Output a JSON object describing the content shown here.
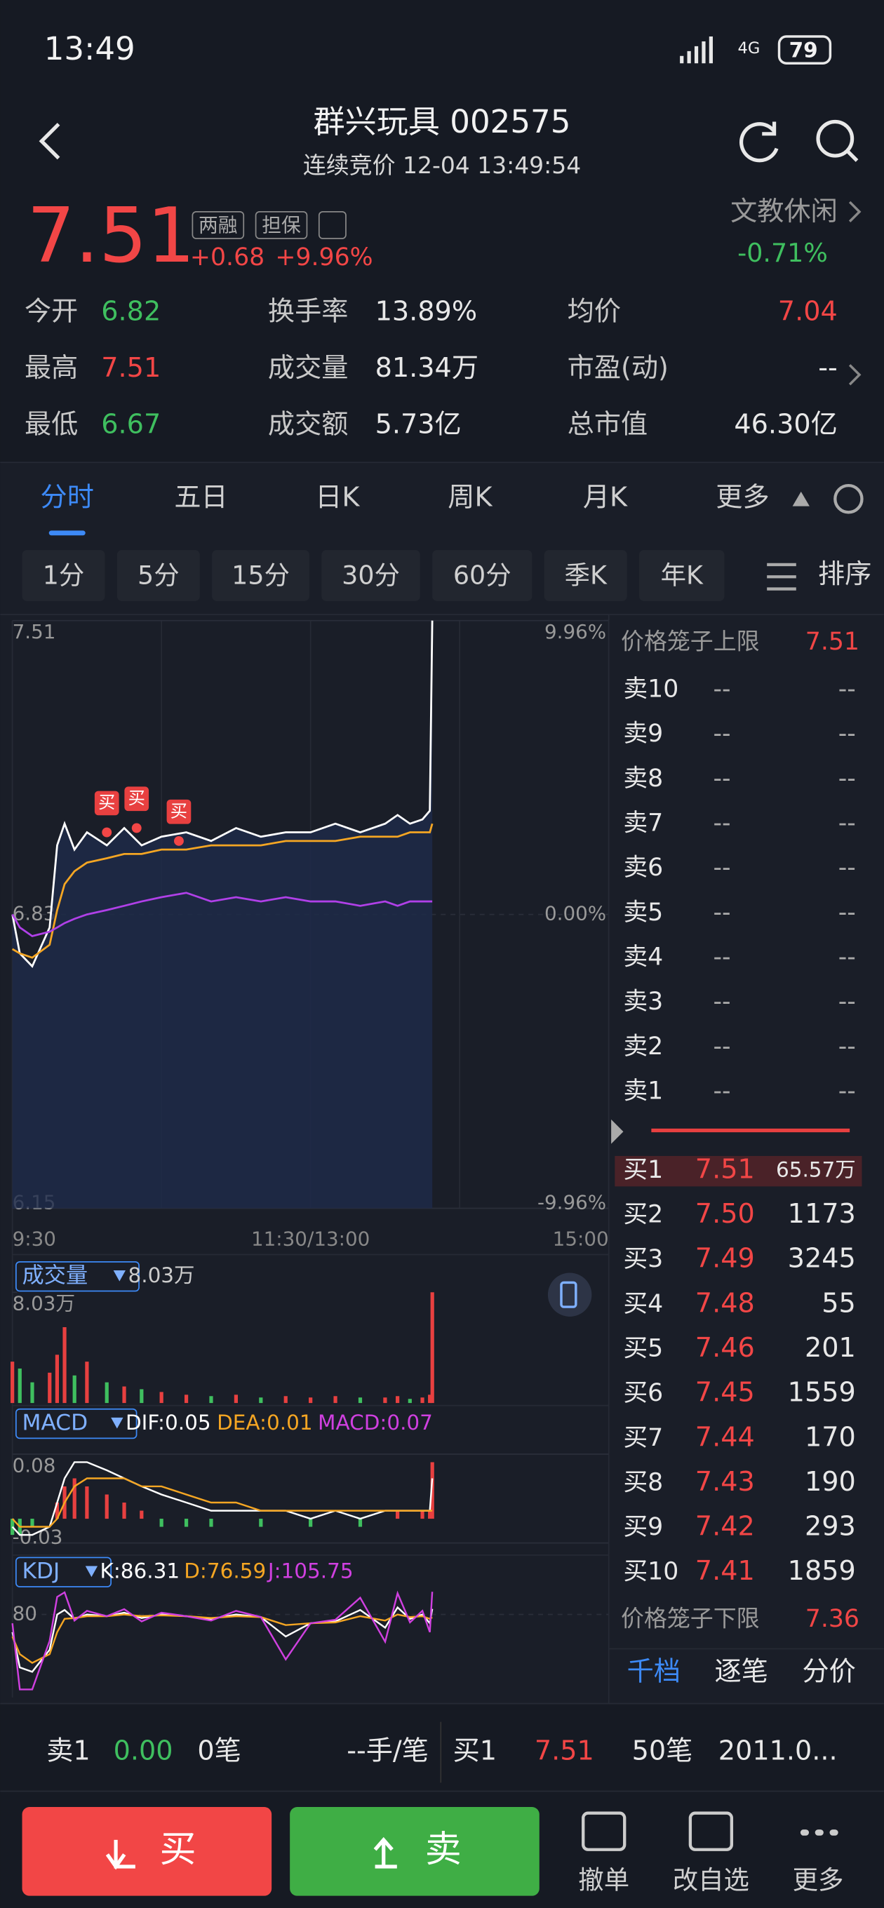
{
  "status_bar": {
    "time": "13:49",
    "network": "4G",
    "battery": "79"
  },
  "header": {
    "title": "群兴玩具 002575",
    "subtitle": "连续竞价 12-04 13:49:54"
  },
  "quote": {
    "price": "7.51",
    "tags": [
      "两融",
      "担保"
    ],
    "change": "+0.68",
    "change_pct": "+9.96%",
    "sector": "文教休闲",
    "sector_change": "-0.71%"
  },
  "stats": [
    [
      {
        "label": "今开",
        "value": "6.82",
        "color": "#3fbf5f"
      },
      {
        "label": "换手率",
        "value": "13.89%",
        "color": "#e8e8e8"
      },
      {
        "label": "均价",
        "value": "7.04",
        "color": "#f24646"
      }
    ],
    [
      {
        "label": "最高",
        "value": "7.51",
        "color": "#f24646"
      },
      {
        "label": "成交量",
        "value": "81.34万",
        "color": "#e8e8e8"
      },
      {
        "label": "市盈(动)",
        "value": "--",
        "color": "#e8e8e8"
      }
    ],
    [
      {
        "label": "最低",
        "value": "6.67",
        "color": "#3fbf5f"
      },
      {
        "label": "成交额",
        "value": "5.73亿",
        "color": "#e8e8e8"
      },
      {
        "label": "总市值",
        "value": "46.30亿",
        "color": "#e8e8e8"
      }
    ]
  ],
  "tabs": [
    "分时",
    "五日",
    "日K",
    "周K",
    "月K",
    "更多"
  ],
  "periods": [
    "1分",
    "5分",
    "15分",
    "30分",
    "60分",
    "季K",
    "年K"
  ],
  "sort": "排序",
  "chart_data": [
    {
      "type": "line",
      "x": [
        0,
        3,
        8,
        15,
        18,
        21,
        25,
        30,
        38,
        45,
        52,
        60,
        70,
        80,
        90,
        100,
        110,
        120,
        130,
        140,
        150,
        155,
        160,
        165,
        168,
        169
      ],
      "xlim": [
        0,
        240
      ],
      "xticks": [
        {
          "value": 0,
          "label": "9:30"
        },
        {
          "value": 120,
          "label": "11:30/13:00"
        },
        {
          "value": 240,
          "label": "15:00"
        }
      ],
      "ylim": [
        6.15,
        7.51
      ],
      "yticks": [
        6.15,
        6.83,
        7.51
      ],
      "y2lim": [
        -9.96,
        9.96
      ],
      "y2ticks": [
        {
          "value": -9.96,
          "label": "-9.96%"
        },
        {
          "value": 0,
          "label": "0.00%"
        },
        {
          "value": 9.96,
          "label": "9.96%"
        }
      ],
      "series": [
        {
          "color": "#ffffff",
          "values": [
            6.83,
            6.74,
            6.71,
            6.8,
            6.99,
            7.04,
            6.98,
            7.02,
            6.99,
            7.03,
            6.99,
            7.01,
            7.02,
            7.0,
            7.03,
            7.01,
            7.02,
            7.02,
            7.04,
            7.02,
            7.04,
            7.06,
            7.04,
            7.05,
            7.07,
            7.51
          ]
        },
        {
          "color": "#f5a623",
          "values": [
            6.75,
            6.74,
            6.73,
            6.76,
            6.84,
            6.9,
            6.93,
            6.95,
            6.96,
            6.97,
            6.97,
            6.98,
            6.98,
            6.99,
            6.99,
            6.99,
            7.0,
            7.0,
            7.0,
            7.01,
            7.01,
            7.01,
            7.02,
            7.02,
            7.02,
            7.04
          ]
        },
        {
          "color": "#b040e8",
          "values": [
            6.83,
            6.8,
            6.78,
            6.79,
            6.8,
            6.81,
            6.82,
            6.83,
            6.84,
            6.85,
            6.86,
            6.87,
            6.88,
            6.86,
            6.87,
            6.86,
            6.87,
            6.86,
            6.86,
            6.85,
            6.86,
            6.85,
            6.86,
            6.86,
            6.86,
            6.86
          ]
        }
      ],
      "annotations": [
        {
          "text": "买",
          "x": 38,
          "y": 7.02
        },
        {
          "text": "买",
          "x": 50,
          "y": 7.03
        },
        {
          "text": "买",
          "x": 67,
          "y": 7.0
        }
      ]
    },
    {
      "type": "bar",
      "title": "成交量",
      "legend_value": "8.03万",
      "x": [
        0,
        3,
        8,
        15,
        18,
        21,
        25,
        30,
        38,
        45,
        52,
        60,
        70,
        80,
        90,
        100,
        110,
        120,
        130,
        140,
        150,
        155,
        160,
        165,
        168,
        169
      ],
      "xlim": [
        0,
        240
      ],
      "ylim": [
        0,
        8.03
      ],
      "yticks": [
        {
          "value": 8.03,
          "label": "8.03万"
        }
      ],
      "values": [
        3.0,
        2.5,
        1.5,
        2.2,
        3.5,
        5.5,
        2.0,
        3.0,
        1.5,
        1.2,
        1.0,
        0.8,
        0.6,
        0.5,
        0.6,
        0.4,
        0.5,
        0.4,
        0.5,
        0.4,
        0.4,
        0.5,
        0.3,
        0.4,
        0.6,
        8.03
      ]
    },
    {
      "type": "macd",
      "title": "MACD",
      "legend": [
        {
          "text": "DIF:0.05",
          "color": "#ffffff"
        },
        {
          "text": "DEA:0.01",
          "color": "#f5a623"
        },
        {
          "text": "MACD:0.07",
          "color": "#d040e0"
        }
      ],
      "x": [
        0,
        3,
        8,
        15,
        18,
        21,
        25,
        30,
        38,
        45,
        52,
        60,
        70,
        80,
        90,
        100,
        110,
        120,
        130,
        140,
        150,
        155,
        160,
        165,
        168,
        169
      ],
      "xlim": [
        0,
        240
      ],
      "ylim": [
        -0.03,
        0.08
      ],
      "yticks": [
        -0.03,
        0.08
      ],
      "series": [
        {
          "values": [
            -0.02,
            -0.02,
            -0.01,
            0.0,
            0.02,
            0.04,
            0.05,
            0.04,
            0.03,
            0.02,
            0.01,
            -0.01,
            -0.01,
            -0.01,
            0.0,
            -0.01,
            0.0,
            -0.01,
            0.0,
            -0.01,
            0.0,
            0.01,
            0.0,
            0.01,
            0.01,
            0.07
          ]
        },
        {
          "color": "#ffffff",
          "values": [
            -0.01,
            -0.02,
            -0.02,
            -0.01,
            0.02,
            0.05,
            0.07,
            0.07,
            0.06,
            0.05,
            0.04,
            0.03,
            0.02,
            0.01,
            0.01,
            0.01,
            0.01,
            0.0,
            0.01,
            0.0,
            0.01,
            0.01,
            0.01,
            0.01,
            0.01,
            0.05
          ]
        },
        {
          "color": "#f5a623",
          "values": [
            0.0,
            -0.01,
            -0.01,
            -0.01,
            0.0,
            0.02,
            0.04,
            0.05,
            0.05,
            0.05,
            0.04,
            0.04,
            0.03,
            0.02,
            0.02,
            0.01,
            0.01,
            0.01,
            0.01,
            0.01,
            0.01,
            0.01,
            0.01,
            0.01,
            0.01,
            0.01
          ]
        }
      ]
    },
    {
      "type": "kdj",
      "title": "KDJ",
      "legend": [
        {
          "text": "K:86.31",
          "color": "#ffffff"
        },
        {
          "text": "D:76.59",
          "color": "#f5a623"
        },
        {
          "text": "J:105.75",
          "color": "#d040e0"
        }
      ],
      "x": [
        0,
        3,
        8,
        15,
        18,
        21,
        25,
        30,
        38,
        45,
        52,
        60,
        70,
        80,
        90,
        100,
        110,
        120,
        130,
        140,
        150,
        155,
        160,
        165,
        168,
        169
      ],
      "xlim": [
        0,
        240
      ],
      "ylim": [
        -10,
        110
      ],
      "yticks": [
        80
      ],
      "series": [
        {
          "color": "#ffffff",
          "values": [
            60,
            20,
            15,
            40,
            80,
            85,
            75,
            80,
            78,
            82,
            76,
            80,
            78,
            75,
            80,
            77,
            55,
            70,
            72,
            85,
            65,
            88,
            75,
            80,
            70,
            86.31
          ]
        },
        {
          "color": "#f5a623",
          "values": [
            55,
            35,
            25,
            35,
            60,
            75,
            76,
            78,
            78,
            80,
            78,
            79,
            78,
            76,
            78,
            77,
            68,
            70,
            71,
            78,
            73,
            80,
            77,
            78,
            75,
            76.59
          ]
        },
        {
          "color": "#d040e0",
          "values": [
            70,
            -5,
            -5,
            50,
            100,
            105,
            73,
            84,
            78,
            86,
            72,
            82,
            78,
            73,
            84,
            77,
            29,
            70,
            74,
            99,
            49,
            104,
            71,
            84,
            60,
            105.75
          ]
        }
      ]
    }
  ],
  "order_book": {
    "upper_limit": {
      "label": "价格笼子上限",
      "value": "7.51"
    },
    "asks": [
      {
        "label": "卖10",
        "price": "--",
        "volume": "--"
      },
      {
        "label": "卖9",
        "price": "--",
        "volume": "--"
      },
      {
        "label": "卖8",
        "price": "--",
        "volume": "--"
      },
      {
        "label": "卖7",
        "price": "--",
        "volume": "--"
      },
      {
        "label": "卖6",
        "price": "--",
        "volume": "--"
      },
      {
        "label": "卖5",
        "price": "--",
        "volume": "--"
      },
      {
        "label": "卖4",
        "price": "--",
        "volume": "--"
      },
      {
        "label": "卖3",
        "price": "--",
        "volume": "--"
      },
      {
        "label": "卖2",
        "price": "--",
        "volume": "--"
      },
      {
        "label": "卖1",
        "price": "--",
        "volume": "--"
      }
    ],
    "bids": [
      {
        "label": "买1",
        "price": "7.51",
        "volume": "65.57万"
      },
      {
        "label": "买2",
        "price": "7.50",
        "volume": "1173"
      },
      {
        "label": "买3",
        "price": "7.49",
        "volume": "3245"
      },
      {
        "label": "买4",
        "price": "7.48",
        "volume": "55"
      },
      {
        "label": "买5",
        "price": "7.46",
        "volume": "201"
      },
      {
        "label": "买6",
        "price": "7.45",
        "volume": "1559"
      },
      {
        "label": "买7",
        "price": "7.44",
        "volume": "170"
      },
      {
        "label": "买8",
        "price": "7.43",
        "volume": "190"
      },
      {
        "label": "买9",
        "price": "7.42",
        "volume": "293"
      },
      {
        "label": "买10",
        "price": "7.41",
        "volume": "1859"
      }
    ],
    "lower_limit": {
      "label": "价格笼子下限",
      "value": "7.36"
    },
    "tabs": [
      "千档",
      "逐笔",
      "分价"
    ]
  },
  "summary": {
    "sell_label": "卖1",
    "sell_price": "0.00",
    "sell_count": "0笔",
    "per_order": "--手/笔",
    "buy_label": "买1",
    "buy_price": "7.51",
    "buy_count": "50笔",
    "buy_amount": "2011.0..."
  },
  "actions": {
    "buy": "买",
    "sell": "卖",
    "items": [
      "撤单",
      "改自选",
      "更多"
    ]
  }
}
